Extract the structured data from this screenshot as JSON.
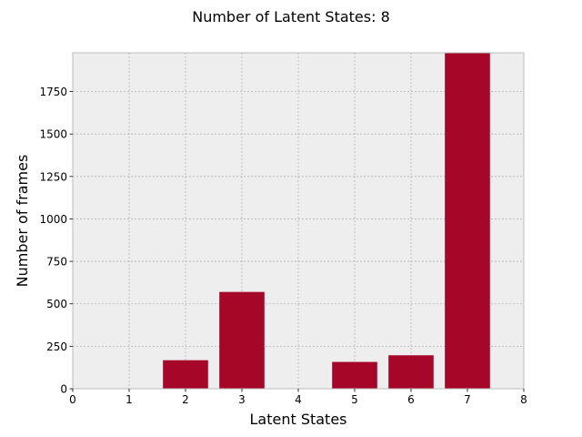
{
  "chart_data": {
    "type": "bar",
    "title": "Number of Latent States: 8",
    "xlabel": "Latent States",
    "ylabel": "Number of frames",
    "categories": [
      0,
      1,
      2,
      3,
      4,
      5,
      6,
      7
    ],
    "values": [
      0,
      0,
      168,
      570,
      0,
      158,
      197,
      1978
    ],
    "xlim": [
      0,
      8
    ],
    "ylim": [
      0,
      1978
    ],
    "xticks": [
      0,
      1,
      2,
      3,
      4,
      5,
      6,
      7,
      8
    ],
    "yticks": [
      0,
      250,
      500,
      750,
      1000,
      1250,
      1500,
      1750
    ],
    "grid": true,
    "colors": {
      "bar": "#a60628",
      "plot_background": "#eeeeee",
      "grid": "#b2b2b2",
      "frame": "#bcbcbc"
    }
  }
}
